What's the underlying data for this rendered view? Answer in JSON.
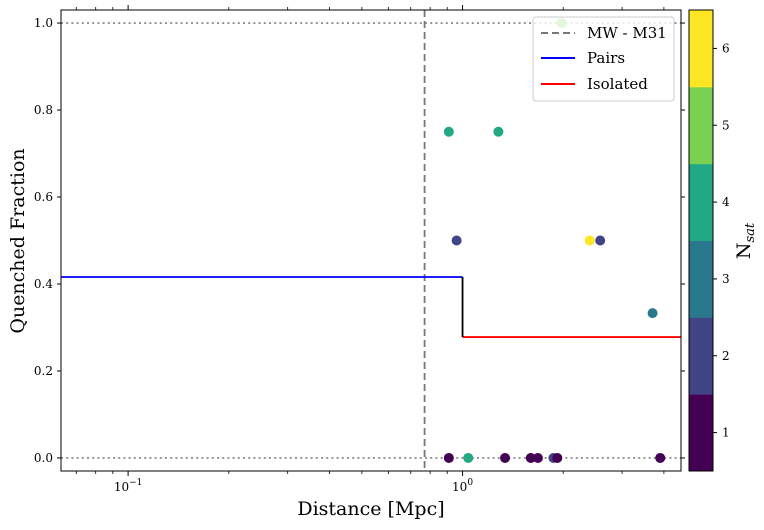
{
  "chart_data": {
    "type": "scatter",
    "xscale": "log",
    "xlim": [
      0.063,
      4.5
    ],
    "ylim": [
      -0.03,
      1.03
    ],
    "xlabel": "Distance [Mpc]",
    "ylabel": "Quenched Fraction",
    "x_ticks": [
      {
        "value": 0.1,
        "base": "10",
        "exp": "−1"
      },
      {
        "value": 1,
        "base": "10",
        "exp": "0"
      }
    ],
    "y_ticks": [
      0.0,
      0.2,
      0.4,
      0.6,
      0.8,
      1.0
    ],
    "y_tick_labels": [
      "0.0",
      "0.2",
      "0.4",
      "0.6",
      "0.8",
      "1.0"
    ],
    "legend": {
      "position": "top-right",
      "entries": [
        {
          "label": "MW - M31",
          "style": "dashed",
          "color": "#777777"
        },
        {
          "label": "Pairs",
          "style": "solid",
          "color": "#0000ff"
        },
        {
          "label": "Isolated",
          "style": "solid",
          "color": "#ff0000"
        }
      ]
    },
    "reference_lines": {
      "horizontal_dotted": [
        0,
        1
      ],
      "mw_m31_distance": 0.77
    },
    "series": [
      {
        "name": "Pairs",
        "color": "#0000ff",
        "x": [
          0.063,
          1.0
        ],
        "y": [
          0.416,
          0.416
        ]
      },
      {
        "name": "Isolated",
        "color": "#ff0000",
        "x": [
          1.0,
          4.5
        ],
        "y": [
          0.278,
          0.278
        ]
      }
    ],
    "step_connector": {
      "color": "#000000",
      "x": 1.0,
      "y": [
        0.278,
        0.416
      ]
    },
    "points": [
      {
        "x": 0.91,
        "y": 0.0,
        "nsat": 1
      },
      {
        "x": 1.04,
        "y": 0.0,
        "nsat": 4
      },
      {
        "x": 1.34,
        "y": 0.0,
        "nsat": 1
      },
      {
        "x": 1.6,
        "y": 0.0,
        "nsat": 1
      },
      {
        "x": 1.68,
        "y": 0.0,
        "nsat": 1
      },
      {
        "x": 1.87,
        "y": 0.0,
        "nsat": 2
      },
      {
        "x": 1.92,
        "y": 0.0,
        "nsat": 1
      },
      {
        "x": 3.9,
        "y": 0.0,
        "nsat": 1
      },
      {
        "x": 0.91,
        "y": 0.75,
        "nsat": 4
      },
      {
        "x": 1.28,
        "y": 0.75,
        "nsat": 4
      },
      {
        "x": 0.96,
        "y": 0.5,
        "nsat": 2
      },
      {
        "x": 2.4,
        "y": 0.5,
        "nsat": 6
      },
      {
        "x": 2.58,
        "y": 0.5,
        "nsat": 2
      },
      {
        "x": 3.7,
        "y": 0.333,
        "nsat": 3
      },
      {
        "x": 1.98,
        "y": 1.0,
        "nsat": 5
      }
    ],
    "colorbar": {
      "label_main": "N",
      "label_sub": "sat",
      "ticks": [
        1,
        2,
        3,
        4,
        5,
        6
      ],
      "range": [
        0.5,
        6.5
      ],
      "colors": [
        "#440154",
        "#414487",
        "#2a788e",
        "#22a884",
        "#7ad151",
        "#fde725"
      ]
    }
  }
}
